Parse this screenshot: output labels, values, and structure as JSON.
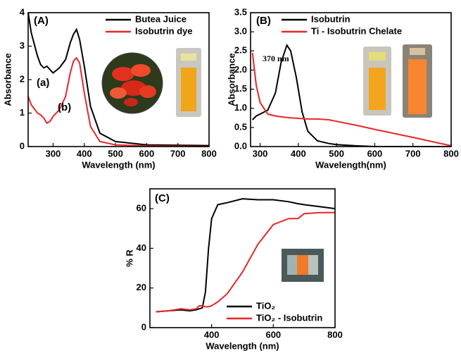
{
  "chart_data": [
    {
      "type": "line",
      "label": "(A)",
      "xlabel": "Wavelength (nm)",
      "ylabel": "Absorbance",
      "xlim": [
        220,
        800
      ],
      "ylim": [
        0,
        4
      ],
      "xticks": [
        300,
        400,
        500,
        600,
        700,
        800
      ],
      "yticks": [
        0,
        1,
        2,
        3,
        4
      ],
      "annotations": [
        "(a)",
        "(b)"
      ],
      "x": [
        220,
        230,
        250,
        260,
        270,
        280,
        290,
        300,
        320,
        340,
        355,
        365,
        375,
        385,
        400,
        420,
        450,
        500,
        600,
        700,
        800
      ],
      "series": [
        {
          "name": "Butea Juice",
          "color": "#000000",
          "values": [
            4.0,
            3.4,
            2.7,
            2.45,
            2.35,
            2.4,
            2.3,
            2.2,
            2.35,
            2.6,
            3.1,
            3.35,
            3.5,
            3.2,
            2.4,
            1.2,
            0.4,
            0.15,
            0.05,
            0.04,
            0.03
          ]
        },
        {
          "name": "Isobutrin dye",
          "color": "#e8262b",
          "values": [
            1.5,
            1.25,
            1.0,
            0.95,
            0.85,
            0.7,
            0.75,
            0.9,
            1.1,
            1.5,
            2.2,
            2.55,
            2.65,
            2.5,
            1.6,
            0.6,
            0.15,
            0.05,
            0.02,
            0.01,
            0.0
          ]
        }
      ]
    },
    {
      "type": "line",
      "label": "(B)",
      "xlabel": "Wavelength(nm)",
      "ylabel": "Absorbance",
      "xlim": [
        275,
        800
      ],
      "ylim": [
        0,
        3.5
      ],
      "xticks": [
        300,
        400,
        500,
        600,
        700,
        800
      ],
      "yticks": [
        {
          "value": 0,
          "label": "0.0"
        },
        0.5,
        {
          "value": 1,
          "label": "1.0"
        },
        1.5,
        {
          "value": 2,
          "label": "2.0"
        },
        2.5,
        {
          "value": 3,
          "label": "3.0"
        },
        3.5
      ],
      "annotations": [
        "370 nm"
      ],
      "x": [
        280,
        290,
        300,
        320,
        340,
        355,
        370,
        380,
        395,
        410,
        425,
        450,
        480,
        500,
        550,
        600,
        700,
        800
      ],
      "series": [
        {
          "name": "Isobutrin",
          "color": "#000000",
          "values": [
            0.7,
            0.8,
            0.85,
            0.95,
            1.4,
            2.2,
            2.65,
            2.5,
            1.8,
            0.9,
            0.4,
            0.15,
            0.08,
            0.05,
            0.02,
            0,
            0,
            0
          ]
        },
        {
          "name": "Ti - Isobutrin Chelate",
          "color": "#e8262b",
          "values": [
            2.45,
            1.6,
            1.15,
            0.85,
            0.8,
            0.78,
            0.76,
            0.75,
            0.74,
            0.73,
            0.72,
            0.72,
            0.7,
            0.66,
            0.56,
            0.45,
            0.24,
            0.02
          ]
        }
      ]
    },
    {
      "type": "line",
      "label": "(C)",
      "xlabel": "Wavelength (nm)",
      "ylabel": "% R",
      "xlim": [
        200,
        800
      ],
      "ylim": [
        0,
        70
      ],
      "xticks": [
        400,
        600,
        800
      ],
      "yticks": [
        0,
        20,
        40,
        60
      ],
      "annotations": [],
      "x": [
        220,
        260,
        300,
        330,
        350,
        360,
        370,
        380,
        390,
        400,
        420,
        450,
        500,
        550,
        600,
        650,
        680,
        700,
        750,
        800
      ],
      "series": [
        {
          "name": "TiO₂",
          "color": "#000000",
          "values": [
            8,
            8.5,
            9,
            8.5,
            9,
            9.5,
            10,
            18,
            40,
            55,
            62,
            63,
            65,
            64.5,
            64.5,
            63.5,
            62.5,
            62,
            61,
            60
          ]
        },
        {
          "name": "TiO₂ - Isobutrin",
          "color": "#e8262b",
          "values": [
            8,
            8.5,
            9.5,
            9,
            9.5,
            11,
            11,
            10.5,
            10.5,
            11,
            13,
            17,
            28,
            42,
            52,
            55,
            55,
            57.5,
            58,
            58
          ]
        }
      ]
    }
  ]
}
